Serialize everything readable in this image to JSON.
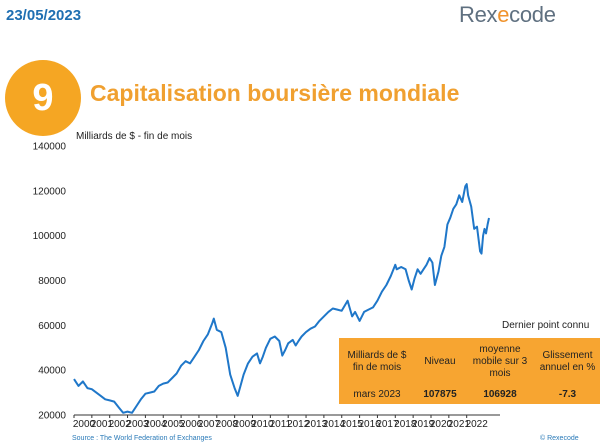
{
  "header": {
    "date": "23/05/2023",
    "logo": {
      "part1": "Rex",
      "part2": "e",
      "part3": "code"
    }
  },
  "slide": {
    "number": "9",
    "title": "Capitalisation boursière mondiale"
  },
  "colors": {
    "line": "#1f77c9",
    "accent": "#f5a623",
    "table_bg": "#f7a531",
    "date": "#1f6fb2"
  },
  "chart_data": {
    "type": "line",
    "ylabel": "Milliards de $ - fin de mois",
    "ylim": [
      20000,
      140000
    ],
    "yticks": [
      "140000",
      "120000",
      "100000",
      "80000",
      "60000",
      "40000",
      "20000"
    ],
    "xlim": [
      2000,
      2023.25
    ],
    "xticks": [
      "2000",
      "2001",
      "2002",
      "2003",
      "2004",
      "2005",
      "2006",
      "2007",
      "2008",
      "2009",
      "2010",
      "2011",
      "2012",
      "2013",
      "2014",
      "2015",
      "2016",
      "2017",
      "2018",
      "2019",
      "2020",
      "2021",
      "2022"
    ],
    "grid": false,
    "series": [
      {
        "points": [
          [
            2000.0,
            36000
          ],
          [
            2000.25,
            33000
          ],
          [
            2000.5,
            35000
          ],
          [
            2000.75,
            32000
          ],
          [
            2001.0,
            31500
          ],
          [
            2001.25,
            30000
          ],
          [
            2001.5,
            28500
          ],
          [
            2001.75,
            27000
          ],
          [
            2002.0,
            26500
          ],
          [
            2002.25,
            26000
          ],
          [
            2002.5,
            23500
          ],
          [
            2002.75,
            21000
          ],
          [
            2003.0,
            21500
          ],
          [
            2003.25,
            21000
          ],
          [
            2003.5,
            24000
          ],
          [
            2003.75,
            27000
          ],
          [
            2004.0,
            29500
          ],
          [
            2004.25,
            30000
          ],
          [
            2004.5,
            30500
          ],
          [
            2004.75,
            33000
          ],
          [
            2005.0,
            34000
          ],
          [
            2005.25,
            34500
          ],
          [
            2005.5,
            36500
          ],
          [
            2005.75,
            38500
          ],
          [
            2006.0,
            42000
          ],
          [
            2006.25,
            44000
          ],
          [
            2006.5,
            43000
          ],
          [
            2006.75,
            46000
          ],
          [
            2007.0,
            49000
          ],
          [
            2007.25,
            53000
          ],
          [
            2007.5,
            56000
          ],
          [
            2007.75,
            61000
          ],
          [
            2007.83,
            63000
          ],
          [
            2008.0,
            58000
          ],
          [
            2008.25,
            57000
          ],
          [
            2008.5,
            50000
          ],
          [
            2008.75,
            38000
          ],
          [
            2009.0,
            32000
          ],
          [
            2009.17,
            28500
          ],
          [
            2009.33,
            33000
          ],
          [
            2009.5,
            38000
          ],
          [
            2009.75,
            43000
          ],
          [
            2010.0,
            46000
          ],
          [
            2010.25,
            47500
          ],
          [
            2010.42,
            43000
          ],
          [
            2010.58,
            46000
          ],
          [
            2010.75,
            50000
          ],
          [
            2011.0,
            54000
          ],
          [
            2011.25,
            55000
          ],
          [
            2011.5,
            53000
          ],
          [
            2011.67,
            46500
          ],
          [
            2011.83,
            49000
          ],
          [
            2012.0,
            52000
          ],
          [
            2012.25,
            53500
          ],
          [
            2012.42,
            51000
          ],
          [
            2012.58,
            53000
          ],
          [
            2012.75,
            55000
          ],
          [
            2013.0,
            57000
          ],
          [
            2013.25,
            58500
          ],
          [
            2013.5,
            59500
          ],
          [
            2013.75,
            62000
          ],
          [
            2014.0,
            64000
          ],
          [
            2014.25,
            66000
          ],
          [
            2014.5,
            67500
          ],
          [
            2014.75,
            67000
          ],
          [
            2015.0,
            66500
          ],
          [
            2015.33,
            71000
          ],
          [
            2015.58,
            64000
          ],
          [
            2015.75,
            66000
          ],
          [
            2016.0,
            62000
          ],
          [
            2016.25,
            66000
          ],
          [
            2016.5,
            67000
          ],
          [
            2016.75,
            68000
          ],
          [
            2017.0,
            71000
          ],
          [
            2017.25,
            75000
          ],
          [
            2017.5,
            78000
          ],
          [
            2017.75,
            82000
          ],
          [
            2018.0,
            87000
          ],
          [
            2018.08,
            85000
          ],
          [
            2018.33,
            86000
          ],
          [
            2018.58,
            85000
          ],
          [
            2018.75,
            80000
          ],
          [
            2018.92,
            76000
          ],
          [
            2019.08,
            81000
          ],
          [
            2019.25,
            85000
          ],
          [
            2019.42,
            83000
          ],
          [
            2019.58,
            85000
          ],
          [
            2019.75,
            87000
          ],
          [
            2019.92,
            90000
          ],
          [
            2020.08,
            88000
          ],
          [
            2020.22,
            78000
          ],
          [
            2020.42,
            84000
          ],
          [
            2020.58,
            91000
          ],
          [
            2020.75,
            95000
          ],
          [
            2020.92,
            105000
          ],
          [
            2021.08,
            108000
          ],
          [
            2021.25,
            112000
          ],
          [
            2021.42,
            114000
          ],
          [
            2021.58,
            118000
          ],
          [
            2021.75,
            115000
          ],
          [
            2021.92,
            122000
          ],
          [
            2022.0,
            123000
          ],
          [
            2022.08,
            118000
          ],
          [
            2022.25,
            113000
          ],
          [
            2022.42,
            103000
          ],
          [
            2022.58,
            104000
          ],
          [
            2022.75,
            93000
          ],
          [
            2022.83,
            92000
          ],
          [
            2022.92,
            100000
          ],
          [
            2023.0,
            103000
          ],
          [
            2023.08,
            101000
          ],
          [
            2023.17,
            105000
          ],
          [
            2023.25,
            107875
          ]
        ]
      }
    ]
  },
  "table": {
    "headers": [
      "Milliards de $ fin de mois",
      "Niveau",
      "moyenne mobile sur 3 mois",
      "Glissement annuel en %"
    ],
    "row": [
      "mars 2023",
      "107875",
      "106928",
      "-7.3"
    ]
  },
  "labels": {
    "last_point": "Dernier point connu",
    "source": "Source : The World Federation of Exchanges",
    "copyright": "© Rexecode"
  }
}
